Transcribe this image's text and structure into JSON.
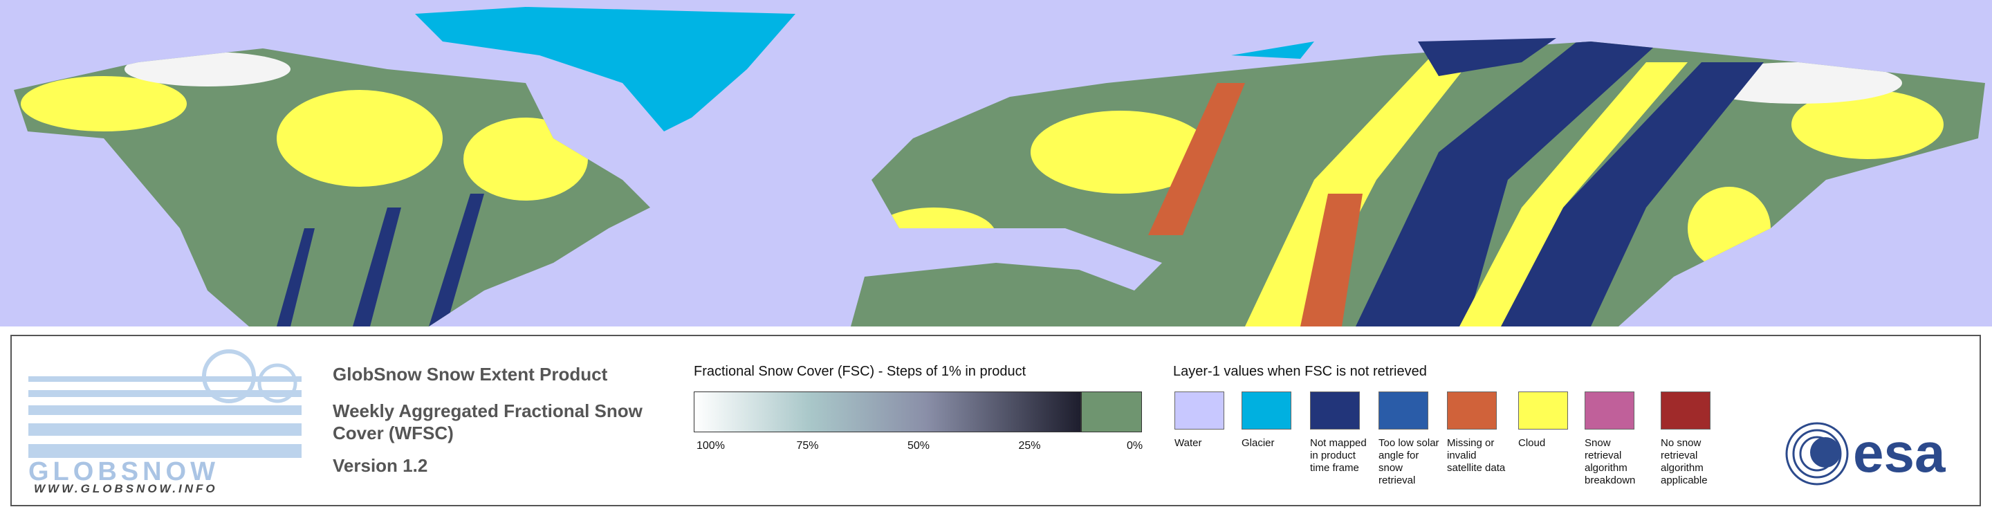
{
  "logo": {
    "name": "GLOBSNOW",
    "url": "WWW.GLOBSNOW.INFO"
  },
  "product": {
    "title": "GlobSnow Snow Extent Product",
    "subtitle": "Weekly Aggregated Fractional Snow Cover (WFSC)",
    "version": "Version 1.2"
  },
  "fsc_legend": {
    "title": "Fractional Snow Cover (FSC) - Steps of 1% in product",
    "ticks": [
      "100%",
      "75%",
      "50%",
      "25%",
      "0%"
    ]
  },
  "layer_legend": {
    "title": "Layer-1 values when FSC is not retrieved",
    "items": [
      {
        "label": "Water",
        "color": "#c8c8ff"
      },
      {
        "label": "Glacier",
        "color": "#00b0e0"
      },
      {
        "label": "Not mapped in product time frame",
        "color": "#22357a"
      },
      {
        "label": "Too low solar angle for snow retrieval",
        "color": "#2a5ca8"
      },
      {
        "label": "Missing or invalid satellite data",
        "color": "#d0623a"
      },
      {
        "label": "Cloud",
        "color": "#ffff55"
      },
      {
        "label": "Snow retrieval algorithm breakdown",
        "color": "#c0609a"
      },
      {
        "label": "No snow retrieval algorithm applicable",
        "color": "#a02a2a"
      }
    ]
  },
  "esa": "esa"
}
